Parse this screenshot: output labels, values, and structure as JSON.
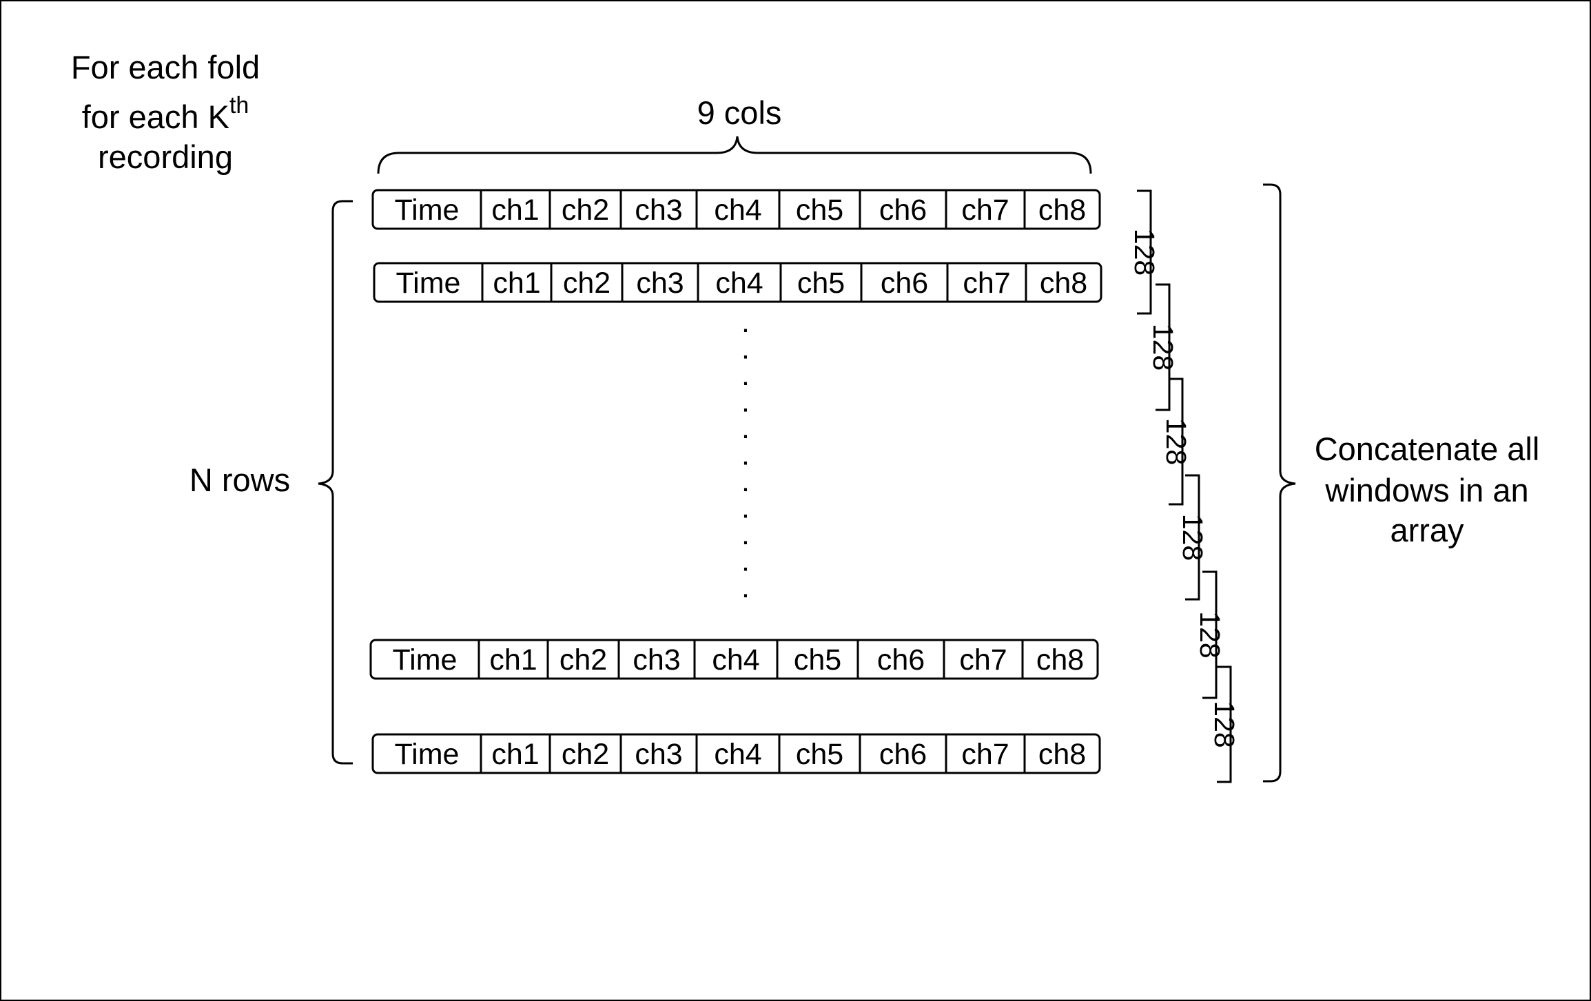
{
  "left_label": {
    "line1": "For each fold",
    "line2": "for each K",
    "line2_sup": "th",
    "line3": "recording"
  },
  "cols_label": "9 cols",
  "rows_label": "N rows",
  "right_label": {
    "line1": "Concatenate all",
    "line2": "windows in an",
    "line3": "array"
  },
  "columns": [
    "Time",
    "ch1",
    "ch2",
    "ch3",
    "ch4",
    "ch5",
    "ch6",
    "ch7",
    "ch8"
  ],
  "window_size_label": "128",
  "ellipsis": "."
}
